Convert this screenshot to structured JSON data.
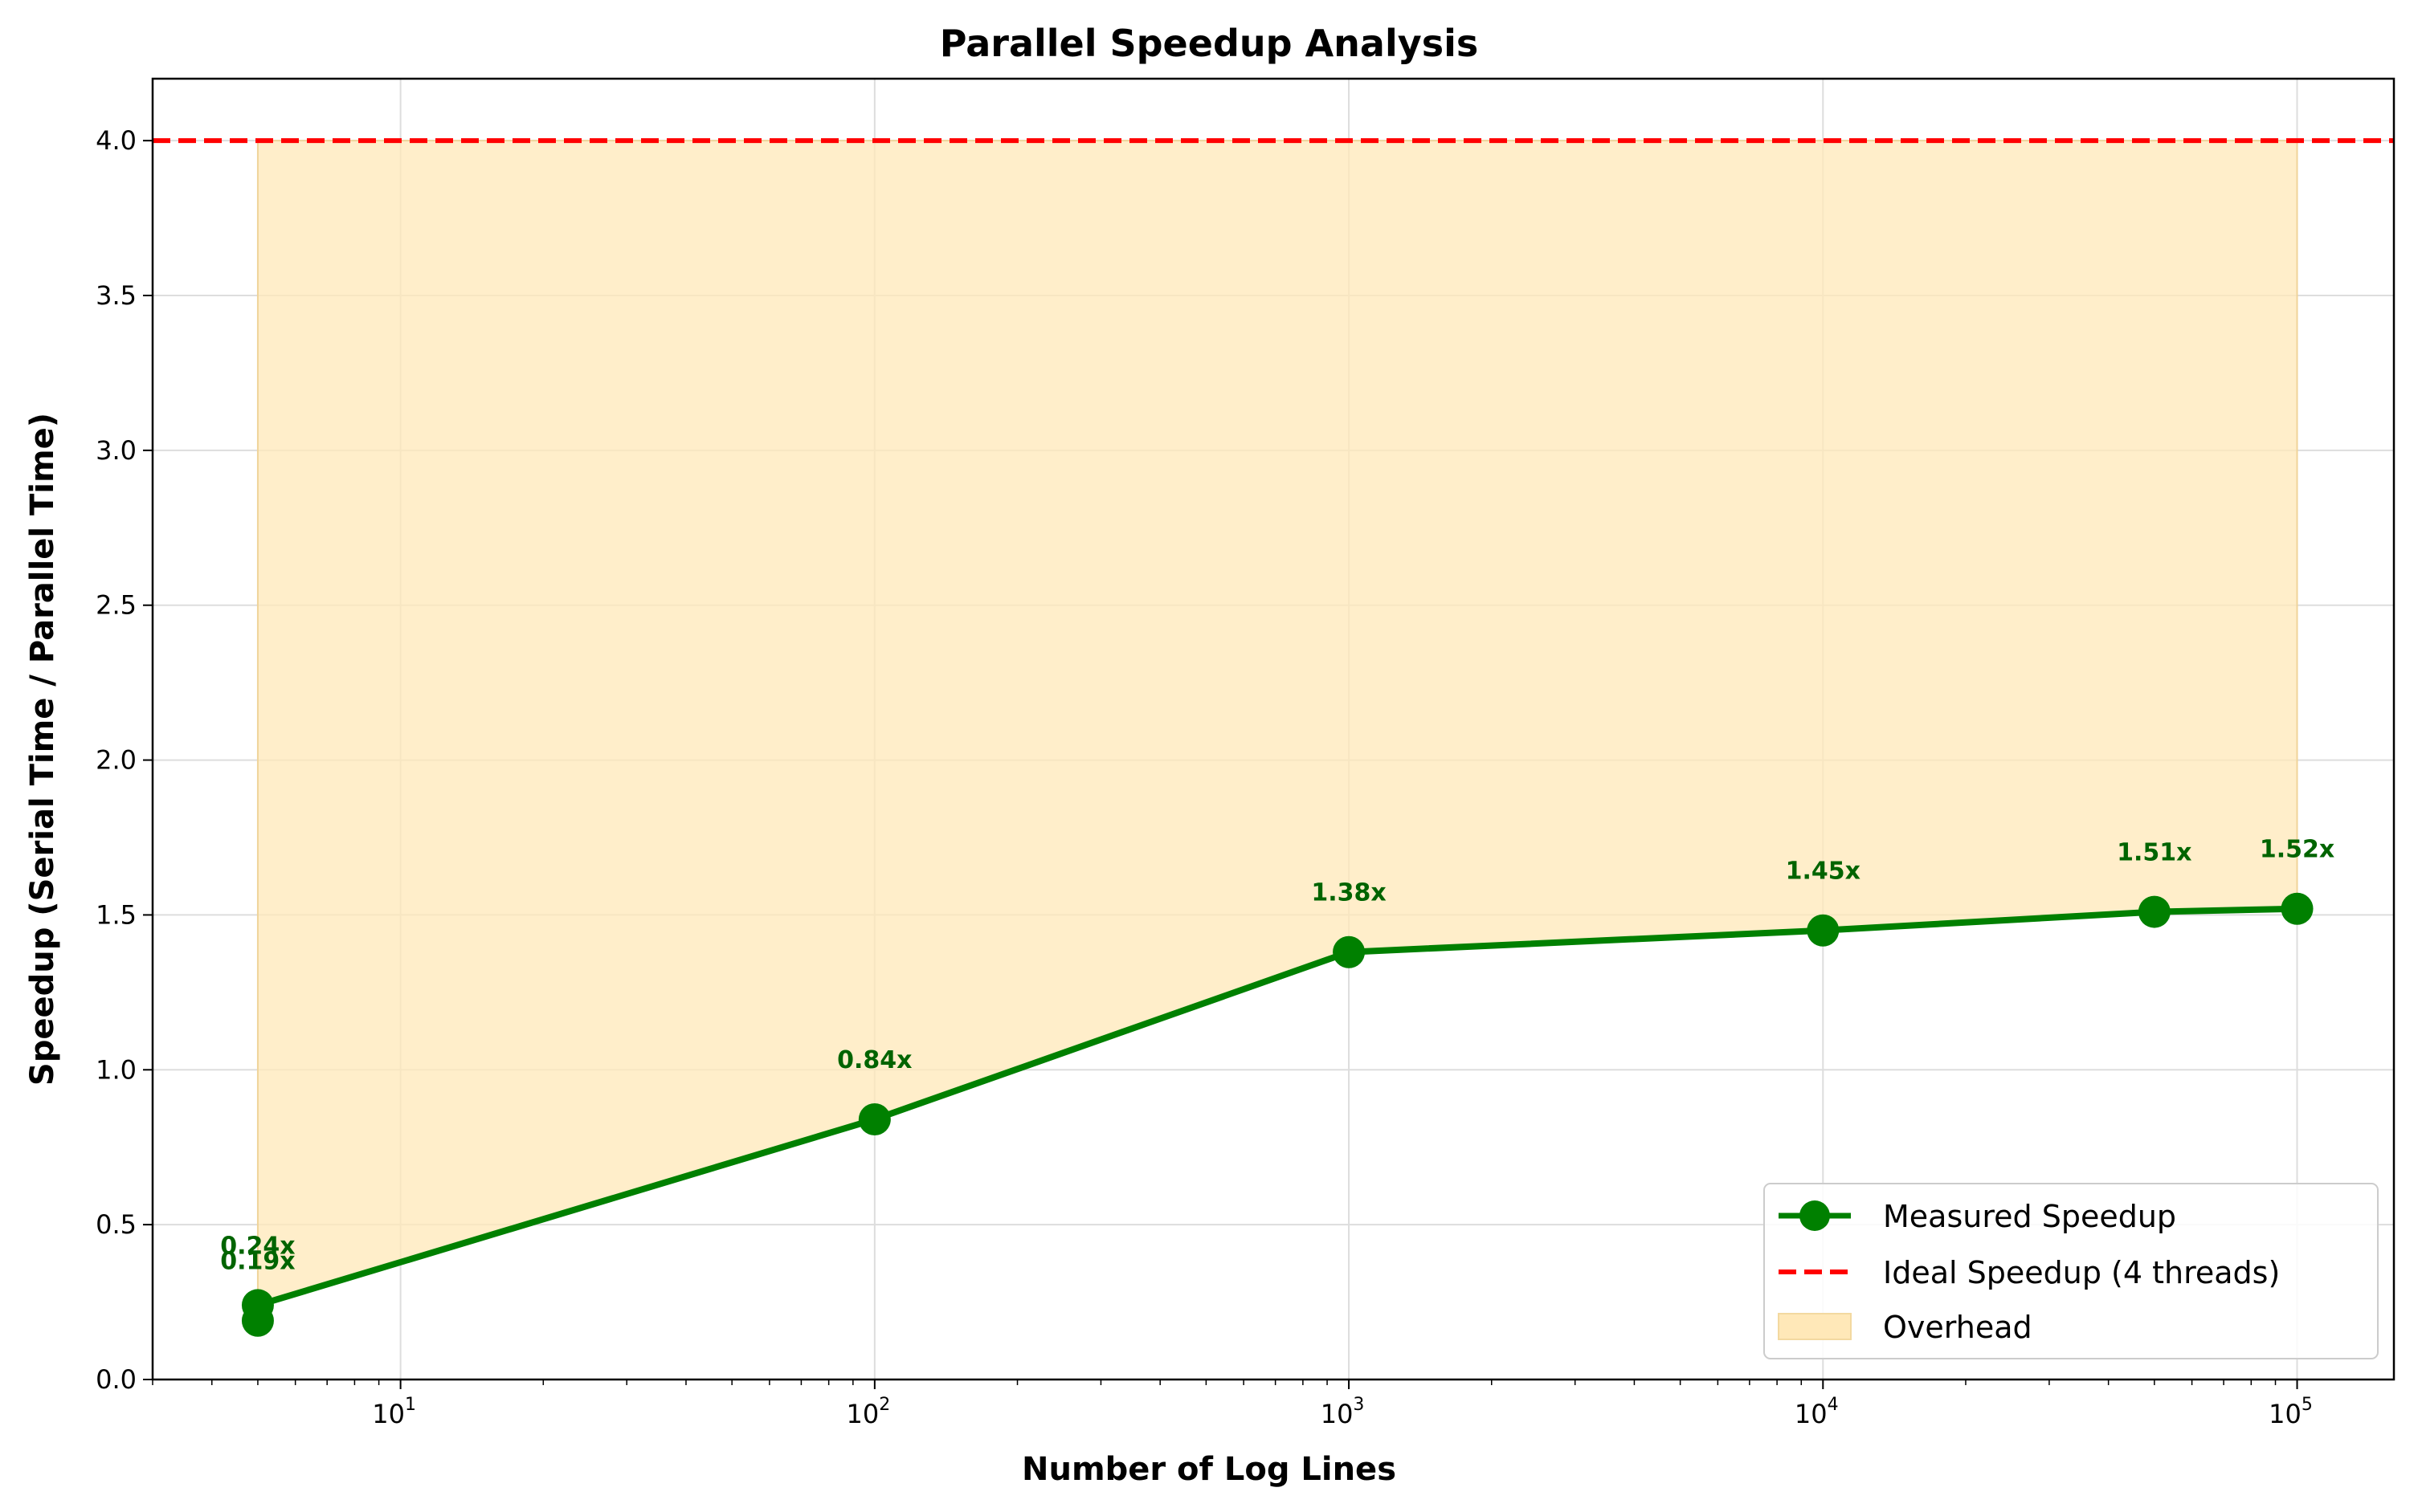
{
  "chart_data": {
    "type": "line",
    "title": "Parallel Speedup Analysis",
    "xlabel": "Number of Log Lines",
    "ylabel": "Speedup (Serial Time / Parallel Time)",
    "x_scale": "log",
    "xlim": [
      3,
      160000
    ],
    "ylim": [
      0,
      4.2
    ],
    "x_ticks": [
      {
        "value": 10,
        "base": "10",
        "exp": "1"
      },
      {
        "value": 100,
        "base": "10",
        "exp": "2"
      },
      {
        "value": 1000,
        "base": "10",
        "exp": "3"
      },
      {
        "value": 10000,
        "base": "10",
        "exp": "4"
      },
      {
        "value": 100000,
        "base": "10",
        "exp": "5"
      }
    ],
    "y_ticks": [
      "0.0",
      "0.5",
      "1.0",
      "1.5",
      "2.0",
      "2.5",
      "3.0",
      "3.5",
      "4.0"
    ],
    "grid": true,
    "legend_position": "bottom-right",
    "series": [
      {
        "name": "Measured Speedup",
        "color": "#008000",
        "marker": "circle",
        "points": [
          {
            "x": 5,
            "y": 0.19,
            "label": "0.19x"
          },
          {
            "x": 5,
            "y": 0.24,
            "label": "0.24x"
          },
          {
            "x": 100,
            "y": 0.84,
            "label": "0.84x"
          },
          {
            "x": 1000,
            "y": 1.38,
            "label": "1.38x"
          },
          {
            "x": 10000,
            "y": 1.45,
            "label": "1.45x"
          },
          {
            "x": 50000,
            "y": 1.51,
            "label": "1.51x"
          },
          {
            "x": 100000,
            "y": 1.52,
            "label": "1.52x"
          }
        ]
      }
    ],
    "reference_line": {
      "name": "Ideal Speedup (4 threads)",
      "y": 4.0,
      "color": "#ff0000",
      "style": "dashed"
    },
    "fill": {
      "name": "Overhead",
      "color": "#ffe8b8",
      "between": "measured-and-ideal"
    }
  }
}
